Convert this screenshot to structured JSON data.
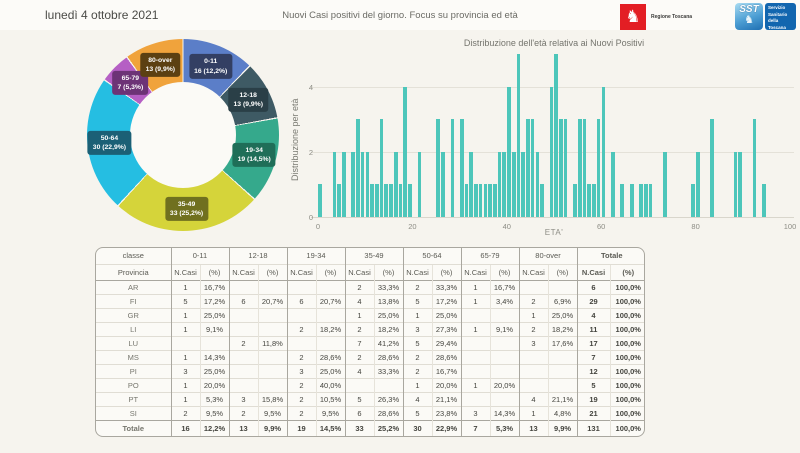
{
  "header": {
    "date": "lunedì 4 ottobre 2021",
    "title": "Nuovi Casi positivi del giorno. Focus su provincia ed età",
    "logo_regione": {
      "text": "Regione Toscana"
    },
    "logo_sst": {
      "abbr": "SST",
      "text": "Servizio Sanitario della Toscana"
    }
  },
  "colors": {
    "background": "#f6f4ee",
    "bar_teal": "#4dc6ba",
    "donut_gap": "#f6f4ee",
    "regione_red": "#e31e24",
    "sst_blue": "#1266af"
  },
  "chart_data": [
    {
      "type": "pie",
      "donut": true,
      "slices": [
        {
          "label": "0-11",
          "value": 16,
          "pct": "12,2%",
          "color": "#5b7ec8",
          "label_bg": "#333f63"
        },
        {
          "label": "12-18",
          "value": 13,
          "pct": "9,9%",
          "color": "#3e5a64",
          "label_bg": "#2a3f47"
        },
        {
          "label": "19-34",
          "value": 19,
          "pct": "14,5%",
          "color": "#35a98c",
          "label_bg": "#1f6e58"
        },
        {
          "label": "35-49",
          "value": 33,
          "pct": "25,2%",
          "color": "#d5d43a",
          "label_bg": "#70701f"
        },
        {
          "label": "50-64",
          "value": 30,
          "pct": "22,9%",
          "color": "#25bee2",
          "label_bg": "#1b6076"
        },
        {
          "label": "65-79",
          "value": 7,
          "pct": "5,3%",
          "color": "#b55fc4",
          "label_bg": "#6d3376"
        },
        {
          "label": "80-over",
          "value": 13,
          "pct": "9,9%",
          "color": "#f0a33c",
          "label_bg": "#5c4012"
        }
      ]
    },
    {
      "type": "bar",
      "title": "Distribuzione dell'età relativa ai Nuovi Positivi",
      "xlabel": "ETA'",
      "ylabel": "Distribuzione per età",
      "xlim": [
        0,
        100
      ],
      "ylim": [
        0,
        5
      ],
      "xticks": [
        0,
        20,
        40,
        60,
        80,
        100
      ],
      "yticks": [
        0,
        2,
        4
      ],
      "bar_color": "#4dc6ba",
      "points": [
        [
          0,
          1
        ],
        [
          3,
          2
        ],
        [
          4,
          1
        ],
        [
          5,
          2
        ],
        [
          7,
          2
        ],
        [
          8,
          3
        ],
        [
          9,
          2
        ],
        [
          10,
          2
        ],
        [
          11,
          1
        ],
        [
          12,
          1
        ],
        [
          13,
          3
        ],
        [
          14,
          1
        ],
        [
          15,
          1
        ],
        [
          16,
          2
        ],
        [
          17,
          1
        ],
        [
          18,
          4
        ],
        [
          19,
          1
        ],
        [
          21,
          2
        ],
        [
          25,
          3
        ],
        [
          26,
          2
        ],
        [
          28,
          3
        ],
        [
          30,
          3
        ],
        [
          31,
          1
        ],
        [
          32,
          2
        ],
        [
          33,
          1
        ],
        [
          34,
          1
        ],
        [
          35,
          1
        ],
        [
          36,
          1
        ],
        [
          37,
          1
        ],
        [
          38,
          2
        ],
        [
          39,
          2
        ],
        [
          40,
          4
        ],
        [
          41,
          2
        ],
        [
          42,
          5
        ],
        [
          43,
          2
        ],
        [
          44,
          3
        ],
        [
          45,
          3
        ],
        [
          46,
          2
        ],
        [
          47,
          1
        ],
        [
          49,
          4
        ],
        [
          50,
          5
        ],
        [
          51,
          3
        ],
        [
          52,
          3
        ],
        [
          54,
          1
        ],
        [
          55,
          3
        ],
        [
          56,
          3
        ],
        [
          57,
          1
        ],
        [
          58,
          1
        ],
        [
          59,
          3
        ],
        [
          60,
          4
        ],
        [
          62,
          2
        ],
        [
          64,
          1
        ],
        [
          66,
          1
        ],
        [
          68,
          1
        ],
        [
          69,
          1
        ],
        [
          70,
          1
        ],
        [
          73,
          2
        ],
        [
          79,
          1
        ],
        [
          80,
          2
        ],
        [
          83,
          3
        ],
        [
          88,
          2
        ],
        [
          89,
          2
        ],
        [
          92,
          3
        ],
        [
          94,
          1
        ]
      ]
    }
  ],
  "table": {
    "class_label": "classe",
    "province_label": "Provincia",
    "groups": [
      "0-11",
      "12-18",
      "19-34",
      "35-49",
      "50-64",
      "65-79",
      "80-over"
    ],
    "total_label": "Totale",
    "subheaders": [
      "N.Casi",
      "(%)"
    ],
    "rows": [
      {
        "provincia": "AR",
        "cells": [
          "1",
          "16,7%",
          "",
          "",
          "",
          "",
          "2",
          "33,3%",
          "2",
          "33,3%",
          "1",
          "16,7%",
          "",
          "",
          "6",
          "100,0%"
        ]
      },
      {
        "provincia": "FI",
        "cells": [
          "5",
          "17,2%",
          "6",
          "20,7%",
          "6",
          "20,7%",
          "4",
          "13,8%",
          "5",
          "17,2%",
          "1",
          "3,4%",
          "2",
          "6,9%",
          "29",
          "100,0%"
        ]
      },
      {
        "provincia": "GR",
        "cells": [
          "1",
          "25,0%",
          "",
          "",
          "",
          "",
          "1",
          "25,0%",
          "1",
          "25,0%",
          "",
          "",
          "1",
          "25,0%",
          "4",
          "100,0%"
        ]
      },
      {
        "provincia": "LI",
        "cells": [
          "1",
          "9,1%",
          "",
          "",
          "2",
          "18,2%",
          "2",
          "18,2%",
          "3",
          "27,3%",
          "1",
          "9,1%",
          "2",
          "18,2%",
          "11",
          "100,0%"
        ]
      },
      {
        "provincia": "LU",
        "cells": [
          "",
          "",
          "2",
          "11,8%",
          "",
          "",
          "7",
          "41,2%",
          "5",
          "29,4%",
          "",
          "",
          "3",
          "17,6%",
          "17",
          "100,0%"
        ]
      },
      {
        "provincia": "MS",
        "cells": [
          "1",
          "14,3%",
          "",
          "",
          "2",
          "28,6%",
          "2",
          "28,6%",
          "2",
          "28,6%",
          "",
          "",
          "",
          "",
          "7",
          "100,0%"
        ]
      },
      {
        "provincia": "PI",
        "cells": [
          "3",
          "25,0%",
          "",
          "",
          "3",
          "25,0%",
          "4",
          "33,3%",
          "2",
          "16,7%",
          "",
          "",
          "",
          "",
          "12",
          "100,0%"
        ]
      },
      {
        "provincia": "PO",
        "cells": [
          "1",
          "20,0%",
          "",
          "",
          "2",
          "40,0%",
          "",
          "",
          "1",
          "20,0%",
          "1",
          "20,0%",
          "",
          "",
          "5",
          "100,0%"
        ]
      },
      {
        "provincia": "PT",
        "cells": [
          "1",
          "5,3%",
          "3",
          "15,8%",
          "2",
          "10,5%",
          "5",
          "26,3%",
          "4",
          "21,1%",
          "",
          "",
          "4",
          "21,1%",
          "19",
          "100,0%"
        ]
      },
      {
        "provincia": "SI",
        "cells": [
          "2",
          "9,5%",
          "2",
          "9,5%",
          "2",
          "9,5%",
          "6",
          "28,6%",
          "5",
          "23,8%",
          "3",
          "14,3%",
          "1",
          "4,8%",
          "21",
          "100,0%"
        ]
      }
    ],
    "total_row": {
      "provincia": "Totale",
      "cells": [
        "16",
        "12,2%",
        "13",
        "9,9%",
        "19",
        "14,5%",
        "33",
        "25,2%",
        "30",
        "22,9%",
        "7",
        "5,3%",
        "13",
        "9,9%",
        "131",
        "100,0%"
      ]
    }
  }
}
